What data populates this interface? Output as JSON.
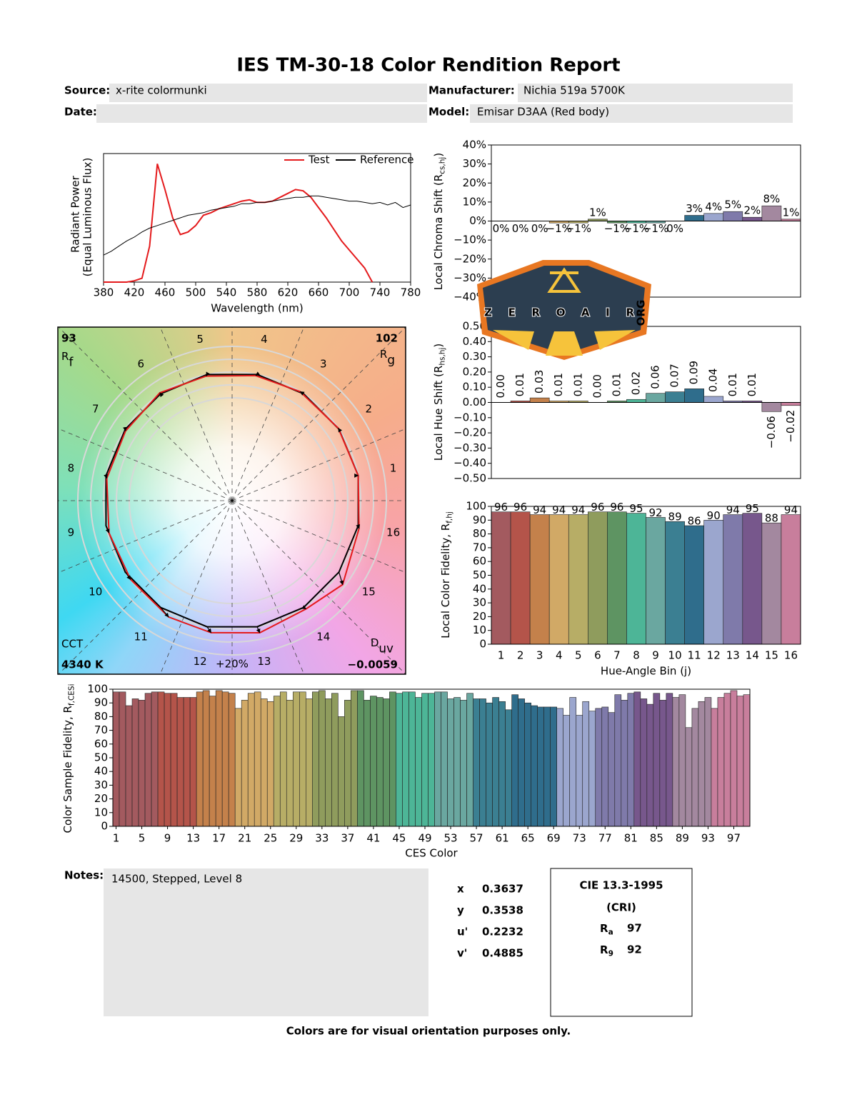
{
  "header": {
    "title": "IES TM-30-18 Color Rendition Report",
    "source_label": "Source:",
    "source": "x-rite colormunki",
    "manufacturer_label": "Manufacturer:",
    "manufacturer": "Nichia 519a 5700K",
    "date_label": "Date:",
    "model_label": "Model:",
    "model": "Emisar D3AA (Red body)"
  },
  "chart_data": [
    {
      "type": "line",
      "ylabel": "Radiant Power",
      "ylabel_note": "(Equal Luminous Flux)",
      "xlabel": "Wavelength (nm)",
      "x": [
        380,
        390,
        400,
        410,
        420,
        430,
        440,
        450,
        460,
        470,
        480,
        490,
        500,
        510,
        520,
        530,
        540,
        550,
        560,
        570,
        580,
        590,
        600,
        610,
        620,
        630,
        640,
        650,
        660,
        670,
        680,
        690,
        700,
        710,
        720,
        730,
        740,
        750,
        760,
        770,
        780
      ],
      "xlim": [
        380,
        780
      ],
      "xticks": [
        380,
        420,
        460,
        500,
        540,
        580,
        620,
        660,
        700,
        740,
        780
      ],
      "ylim": [
        0,
        1
      ],
      "legend": "upper right",
      "series": [
        {
          "name": "Test",
          "color": "#e41a1c",
          "values": [
            0,
            0,
            0,
            0,
            0.01,
            0.03,
            0.28,
            0.92,
            0.72,
            0.5,
            0.37,
            0.39,
            0.44,
            0.52,
            0.54,
            0.57,
            0.59,
            0.61,
            0.63,
            0.64,
            0.62,
            0.62,
            0.63,
            0.66,
            0.69,
            0.72,
            0.71,
            0.66,
            0.58,
            0.5,
            0.41,
            0.32,
            0.25,
            0.18,
            0.11,
            0,
            null,
            null,
            null,
            null,
            null
          ]
        },
        {
          "name": "Reference",
          "color": "#000000",
          "values": [
            0.21,
            0.24,
            0.28,
            0.32,
            0.35,
            0.39,
            0.42,
            0.44,
            0.46,
            0.48,
            0.5,
            0.52,
            0.53,
            0.54,
            0.56,
            0.57,
            0.58,
            0.59,
            0.61,
            0.61,
            0.62,
            0.62,
            0.63,
            0.64,
            0.65,
            0.66,
            0.66,
            0.67,
            0.67,
            0.66,
            0.65,
            0.64,
            0.63,
            0.63,
            0.62,
            0.61,
            0.62,
            0.6,
            0.62,
            0.58,
            0.6
          ]
        }
      ]
    },
    {
      "type": "vector",
      "rf": 93,
      "rf_symbol": "R",
      "rf_subscript": "f",
      "rg": 102,
      "rg_symbol": "R",
      "rg_subscript": "g",
      "cct_caption": "CCT",
      "cct": "4340 K",
      "duv_symbol": "D",
      "duv_subscript": "uv",
      "duv": "−0.0059",
      "scale_label": "+20%",
      "bins": [
        1,
        2,
        3,
        4,
        5,
        6,
        7,
        8,
        9,
        10,
        11,
        12,
        13,
        14,
        15,
        16
      ],
      "reference_color": "#000000",
      "test_color": "#e41a1c",
      "reference_x": [
        0.981,
        0.831,
        0.556,
        0.195,
        -0.195,
        -0.556,
        -0.831,
        -0.981,
        -0.981,
        -0.831,
        -0.556,
        -0.195,
        0.195,
        0.556,
        0.831,
        0.981
      ],
      "reference_y": [
        0.195,
        0.556,
        0.831,
        0.981,
        0.981,
        0.831,
        0.556,
        0.195,
        -0.195,
        -0.556,
        -0.831,
        -0.981,
        -0.981,
        -0.831,
        -0.556,
        -0.195
      ],
      "test_x": [
        0.981,
        0.826,
        0.53,
        0.184,
        -0.202,
        -0.562,
        -0.829,
        -0.975,
        -0.958,
        -0.79,
        -0.494,
        -0.163,
        0.215,
        0.575,
        0.86,
        0.987
      ],
      "test_y": [
        0.195,
        0.564,
        0.848,
        0.973,
        0.969,
        0.839,
        0.542,
        0.174,
        -0.251,
        -0.613,
        -0.905,
        -1.027,
        -1.028,
        -0.842,
        -0.653,
        -0.217
      ]
    },
    {
      "type": "bar",
      "ylabel": {
        "text": "Local Chroma Shift (R",
        "subscript": "cs,hj",
        "close": ")"
      },
      "colors": [
        "#a35a5f",
        "#b4544a",
        "#c4814b",
        "#d1a966",
        "#b7ad66",
        "#8f9c5d",
        "#5e9462",
        "#4db597",
        "#6aa7a0",
        "#3b7f92",
        "#2f6d8c",
        "#9ba6ce",
        "#7f7aaa",
        "#77578c",
        "#a3889f",
        "#c87e9c"
      ],
      "ylim": [
        -40,
        40
      ],
      "yticks": [
        {
          "value": 40,
          "label": "40%"
        },
        {
          "value": 30,
          "label": "30%"
        },
        {
          "value": 20,
          "label": "20%"
        },
        {
          "value": 10,
          "label": "10%"
        },
        {
          "value": 0,
          "label": "0%"
        },
        {
          "value": -10,
          "label": "−10%"
        },
        {
          "value": -20,
          "label": "−20%"
        },
        {
          "value": -30,
          "label": "−30%"
        },
        {
          "value": -40,
          "label": "−40%"
        }
      ],
      "values": [
        0,
        0,
        0,
        -1,
        -1,
        1,
        -1,
        -1,
        -1,
        0,
        3,
        4,
        5,
        2,
        8,
        1
      ],
      "value_labels": [
        "0%",
        "0%",
        "0%",
        "−1%",
        "−1%",
        "1%",
        "−1%",
        "−1%",
        "−1%",
        "0%",
        "3%",
        "4%",
        "5%",
        "2%",
        "8%",
        "1%"
      ]
    },
    {
      "type": "bar",
      "ylabel": {
        "text": "Local Hue Shift (R",
        "subscript": "hs,hj",
        "close": ")"
      },
      "colors": [
        "#a35a5f",
        "#b4544a",
        "#c4814b",
        "#d1a966",
        "#b7ad66",
        "#8f9c5d",
        "#5e9462",
        "#4db597",
        "#6aa7a0",
        "#3b7f92",
        "#2f6d8c",
        "#9ba6ce",
        "#7f7aaa",
        "#77578c",
        "#a3889f",
        "#c87e9c"
      ],
      "ylim": [
        -0.5,
        0.5
      ],
      "yticks": [
        {
          "value": 0.5,
          "label": "0.50"
        },
        {
          "value": 0.4,
          "label": "0.40"
        },
        {
          "value": 0.3,
          "label": "0.30"
        },
        {
          "value": 0.2,
          "label": "0.20"
        },
        {
          "value": 0.1,
          "label": "0.10"
        },
        {
          "value": 0,
          "label": "0.00"
        },
        {
          "value": -0.1,
          "label": "−0.10"
        },
        {
          "value": -0.2,
          "label": "−0.20"
        },
        {
          "value": -0.3,
          "label": "−0.30"
        },
        {
          "value": -0.4,
          "label": "−0.40"
        },
        {
          "value": -0.5,
          "label": "−0.50"
        }
      ],
      "values": [
        0,
        0.01,
        0.03,
        0.01,
        0.01,
        0,
        0.01,
        0.02,
        0.06,
        0.07,
        0.09,
        0.04,
        0.01,
        0.01,
        -0.06,
        -0.02
      ],
      "value_labels": [
        "0.00",
        "0.01",
        "0.03",
        "0.01",
        "0.01",
        "0.00",
        "0.01",
        "0.02",
        "0.06",
        "0.07",
        "0.09",
        "0.04",
        "0.01",
        "0.01",
        "−0.06",
        "−0.02"
      ]
    },
    {
      "type": "bar",
      "ylabel": {
        "text": "Local Color Fidelity, R",
        "subscript": "f,hj",
        "close": ""
      },
      "xlabel": "Hue-Angle Bin (j)",
      "colors": [
        "#a35a5f",
        "#b4544a",
        "#c4814b",
        "#d1a966",
        "#b7ad66",
        "#8f9c5d",
        "#5e9462",
        "#4db597",
        "#6aa7a0",
        "#3b7f92",
        "#2f6d8c",
        "#9ba6ce",
        "#7f7aaa",
        "#77578c",
        "#a3889f",
        "#c87e9c"
      ],
      "categories": [
        1,
        2,
        3,
        4,
        5,
        6,
        7,
        8,
        9,
        10,
        11,
        12,
        13,
        14,
        15,
        16
      ],
      "ylim": [
        0,
        100
      ],
      "yticks": [
        0,
        10,
        20,
        30,
        40,
        50,
        60,
        70,
        80,
        90,
        100
      ],
      "values": [
        96,
        96,
        94,
        94,
        94,
        96,
        96,
        95,
        92,
        89,
        86,
        90,
        94,
        95,
        88,
        94
      ]
    },
    {
      "type": "bar",
      "ylabel": {
        "text": "Color Sample Fidelity, R",
        "subscript": "f,CESi",
        "close": ""
      },
      "xlabel": "CES Color",
      "colors": [
        "#a35a5f",
        "#b4544a",
        "#c4814b",
        "#d1a966",
        "#b7ad66",
        "#8f9c5d",
        "#5e9462",
        "#4db597",
        "#6aa7a0",
        "#3b7f92",
        "#2f6d8c",
        "#9ba6ce",
        "#7f7aaa",
        "#77578c",
        "#a3889f",
        "#c87e9c"
      ],
      "x": [
        1,
        2,
        3,
        4,
        5,
        6,
        7,
        8,
        9,
        10,
        11,
        12,
        13,
        14,
        15,
        16,
        17,
        18,
        19,
        20,
        21,
        22,
        23,
        24,
        25,
        26,
        27,
        28,
        29,
        30,
        31,
        32,
        33,
        34,
        35,
        36,
        37,
        38,
        39,
        40,
        41,
        42,
        43,
        44,
        45,
        46,
        47,
        48,
        49,
        50,
        51,
        52,
        53,
        54,
        55,
        56,
        57,
        58,
        59,
        60,
        61,
        62,
        63,
        64,
        65,
        66,
        67,
        68,
        69,
        70,
        71,
        72,
        73,
        74,
        75,
        76,
        77,
        78,
        79,
        80,
        81,
        82,
        83,
        84,
        85,
        86,
        87,
        88,
        89,
        90,
        91,
        92,
        93,
        94,
        95,
        96,
        97,
        98,
        99
      ],
      "xlim": [
        0.5,
        99.5
      ],
      "xticks": [
        1,
        5,
        9,
        13,
        17,
        21,
        25,
        29,
        33,
        37,
        41,
        45,
        49,
        53,
        57,
        61,
        65,
        69,
        73,
        77,
        81,
        85,
        89,
        93,
        97
      ],
      "ylim": [
        0,
        100
      ],
      "yticks": [
        0,
        10,
        20,
        30,
        40,
        50,
        60,
        70,
        80,
        90,
        100
      ],
      "values": [
        98,
        98,
        88,
        93,
        92,
        97,
        98,
        98,
        97,
        97,
        94,
        94,
        94,
        98,
        99,
        95,
        99,
        98,
        97,
        86,
        92,
        97,
        98,
        93,
        91,
        95,
        98,
        92,
        98,
        98,
        93,
        98,
        99,
        93,
        97,
        80,
        92,
        99,
        99,
        92,
        95,
        94,
        93,
        98,
        97,
        98,
        98,
        94,
        97,
        97,
        98,
        98,
        93,
        94,
        92,
        97,
        93,
        93,
        90,
        94,
        91,
        85,
        96,
        93,
        90,
        88,
        87,
        87,
        87,
        86,
        81,
        94,
        81,
        91,
        84,
        86,
        87,
        83,
        96,
        92,
        97,
        98,
        93,
        89,
        97,
        92,
        97,
        94,
        96,
        72,
        86,
        91,
        94,
        86,
        94,
        97,
        99,
        95,
        96
      ]
    }
  ],
  "notes": {
    "label": "Notes:",
    "text": "14500, Stepped, Level 8"
  },
  "chromaticity": {
    "labels": [
      "x",
      "y",
      "u'",
      "v'"
    ],
    "values": [
      0.3637,
      0.3538,
      0.2232,
      0.4885
    ]
  },
  "cri": {
    "title": "CIE 13.3-1995",
    "subtitle": "(CRI)",
    "ra_symbol": "R",
    "ra_subscript": "a",
    "ra": 97,
    "r9_symbol": "R",
    "r9_subscript": "9",
    "r9": 92
  },
  "watermark": {
    "text": "ZEROAIR",
    "suffix": "ORG"
  },
  "footer": "Colors are for visual orientation purposes only."
}
